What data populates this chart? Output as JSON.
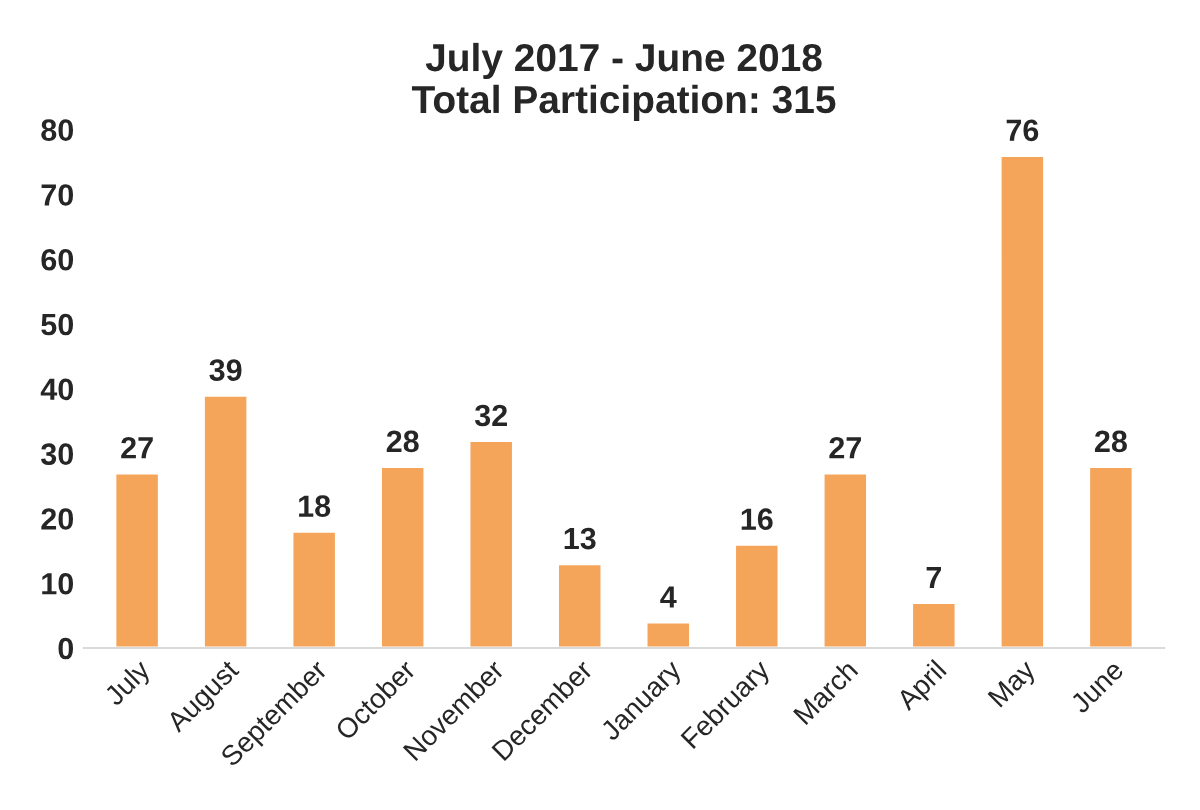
{
  "chart_data": {
    "type": "bar",
    "title": "July 2017 - June 2018\nTotal Participation: 315",
    "categories": [
      "July",
      "August",
      "September",
      "October",
      "November",
      "December",
      "January",
      "February",
      "March",
      "April",
      "May",
      "June"
    ],
    "values": [
      27,
      39,
      18,
      28,
      32,
      13,
      4,
      16,
      27,
      7,
      76,
      28
    ],
    "color": "#f5a55a",
    "ylim": [
      0,
      80
    ],
    "yticks": [
      0,
      10,
      20,
      30,
      40,
      50,
      60,
      70,
      80
    ],
    "data_labels": true,
    "grid": false
  }
}
